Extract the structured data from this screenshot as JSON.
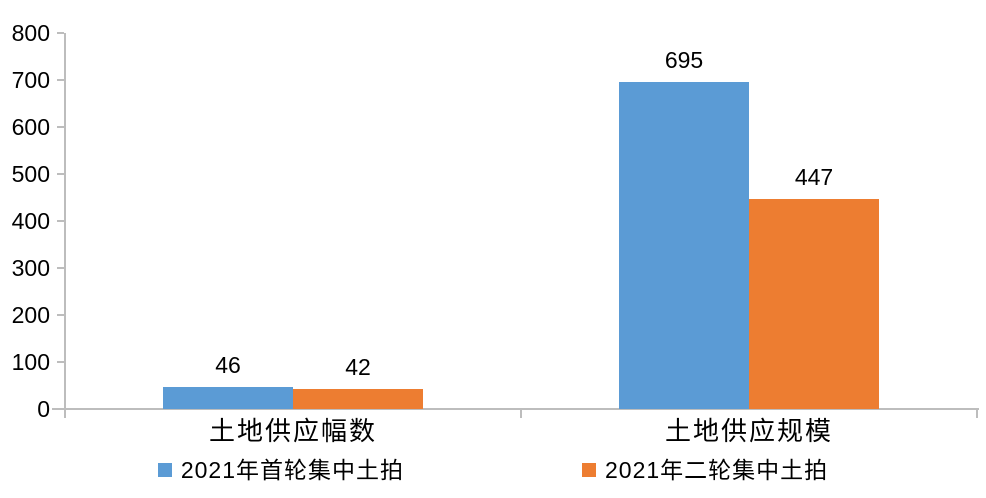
{
  "chart_data": {
    "type": "bar",
    "title": "",
    "xlabel": "",
    "ylabel": "",
    "categories": [
      "土地供应幅数",
      "土地供应规模"
    ],
    "series": [
      {
        "name": "2021年首轮集中土拍",
        "color": "#5B9BD5",
        "values": [
          46,
          695
        ]
      },
      {
        "name": "2021年二轮集中土拍",
        "color": "#ED7D31",
        "values": [
          42,
          447
        ]
      }
    ],
    "ylim": [
      0,
      800
    ],
    "yticks": [
      0,
      100,
      200,
      300,
      400,
      500,
      600,
      700,
      800
    ],
    "grid": false,
    "data_labels": true,
    "legend_position": "bottom",
    "axis_color": "#BDBDBD",
    "text_color": "#000000",
    "background_color": "#FFFFFF"
  }
}
